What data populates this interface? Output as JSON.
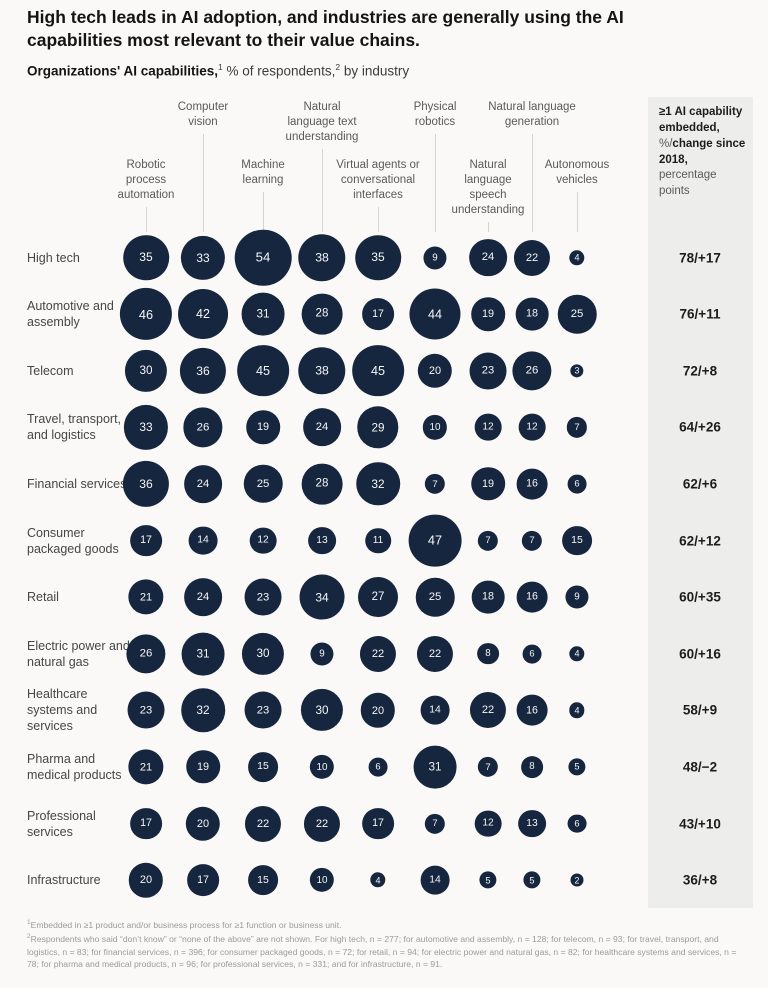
{
  "page": {
    "title": "High tech leads in AI adoption, and industries are generally using the AI capabilities most relevant to their value chains.",
    "subtitle": {
      "lead_bold": "Organizations' AI capabilities,",
      "sup1": "1",
      "mid": " % of respondents,",
      "sup2": "2",
      "tail": " by industry"
    }
  },
  "chart_data": {
    "type": "heatmap",
    "title": "High tech leads in AI adoption, and industries are generally using the AI capabilities most relevant to their value chains.",
    "subtitle": "Organizations' AI capabilities, % of respondents, by industry",
    "encoding": "bubble size and number = % of respondents adopting each AI capability",
    "columns": [
      "Robotic process automation",
      "Computer vision",
      "Machine learning",
      "Natural language text understanding",
      "Virtual agents or conversational interfaces",
      "Physical robotics",
      "Natural language speech understanding",
      "Natural language generation",
      "Autonomous vehicles"
    ],
    "rows": [
      "High tech",
      "Automotive and assembly",
      "Telecom",
      "Travel, transport, and logistics",
      "Financial services",
      "Consumer packaged goods",
      "Retail",
      "Electric power and natural gas",
      "Healthcare systems and services",
      "Pharma and medical products",
      "Professional services",
      "Infrastructure"
    ],
    "values": [
      [
        35,
        33,
        54,
        38,
        35,
        9,
        24,
        22,
        4
      ],
      [
        46,
        42,
        31,
        28,
        17,
        44,
        19,
        18,
        25
      ],
      [
        30,
        36,
        45,
        38,
        45,
        20,
        23,
        26,
        3
      ],
      [
        33,
        26,
        19,
        24,
        29,
        10,
        12,
        12,
        7
      ],
      [
        36,
        24,
        25,
        28,
        32,
        7,
        19,
        16,
        6
      ],
      [
        17,
        14,
        12,
        13,
        11,
        47,
        7,
        7,
        15
      ],
      [
        21,
        24,
        23,
        34,
        27,
        25,
        18,
        16,
        9
      ],
      [
        26,
        31,
        30,
        9,
        22,
        22,
        8,
        6,
        4
      ],
      [
        23,
        32,
        23,
        30,
        20,
        14,
        22,
        16,
        4
      ],
      [
        21,
        19,
        15,
        10,
        6,
        31,
        7,
        8,
        5
      ],
      [
        17,
        20,
        22,
        22,
        17,
        7,
        12,
        13,
        6
      ],
      [
        20,
        17,
        15,
        10,
        4,
        14,
        5,
        5,
        2
      ]
    ],
    "summary_header_segments": [
      {
        "text": "≥1 AI capability embedded, ",
        "bold": true
      },
      {
        "text": "%/",
        "bold": false
      },
      {
        "text": "change since 2018, ",
        "bold": true
      },
      {
        "text": "percentage points",
        "bold": false
      }
    ],
    "summaries": [
      "78/+17",
      "76/+11",
      "72/+8",
      "64/+26",
      "62/+6",
      "62/+12",
      "60/+35",
      "60/+16",
      "58/+9",
      "48/−2",
      "43/+10",
      "36/+8"
    ],
    "legend_position": "none",
    "grid": false,
    "bubble_color": "#16263e",
    "bubble_text_color": "#f5f6f8",
    "panel_color": "#ededec"
  },
  "footnotes": [
    {
      "sup": "1",
      "text": "Embedded in ≥1 product and/or business process for ≥1 function or business unit."
    },
    {
      "sup": "2",
      "text": "Respondents who said “don’t know” or “none of the above” are not shown. For high tech, n = 277; for automotive and assembly, n = 128; for telecom, n = 93; for travel, transport, and logistics, n = 83; for financial services, n = 396; for consumer packaged goods, n = 72; for retail, n = 94; for electric power and natural gas, n = 82; for healthcare systems and services, n = 78; for pharma and medical products, n = 96; for professional services, n = 331; and for infrastructure, n = 91."
    }
  ]
}
